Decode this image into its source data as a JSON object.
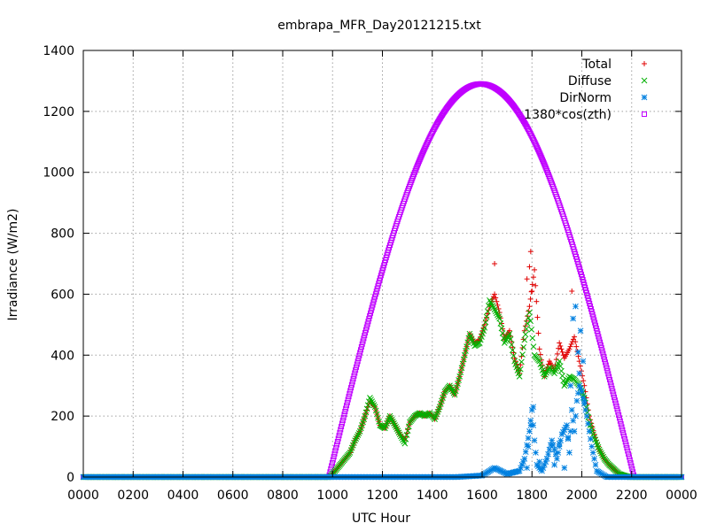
{
  "chart_data": {
    "type": "scatter",
    "title": "embrapa_MFR_Day20121215.txt",
    "xlabel": "UTC Hour",
    "ylabel": "Irradiance (W/m2)",
    "xlim": [
      0,
      24
    ],
    "ylim": [
      0,
      1400
    ],
    "x_ticks": [
      {
        "value": 0,
        "label": "0000"
      },
      {
        "value": 2,
        "label": "0200"
      },
      {
        "value": 4,
        "label": "0400"
      },
      {
        "value": 6,
        "label": "0600"
      },
      {
        "value": 8,
        "label": "0800"
      },
      {
        "value": 10,
        "label": "1000"
      },
      {
        "value": 12,
        "label": "1200"
      },
      {
        "value": 14,
        "label": "1400"
      },
      {
        "value": 16,
        "label": "1600"
      },
      {
        "value": 18,
        "label": "1800"
      },
      {
        "value": 20,
        "label": "2000"
      },
      {
        "value": 22,
        "label": "2200"
      },
      {
        "value": 24,
        "label": "0000"
      }
    ],
    "y_ticks": [
      0,
      200,
      400,
      600,
      800,
      1000,
      1200,
      1400
    ],
    "grid": true,
    "legend_position": "top-right",
    "series": [
      {
        "name": "Total",
        "color": "#e00000",
        "marker": "plus",
        "x": [
          0,
          2,
          4,
          6,
          8,
          9.9,
          10.1,
          10.3,
          10.5,
          10.7,
          10.9,
          11.1,
          11.3,
          11.5,
          11.7,
          11.9,
          12.1,
          12.3,
          12.5,
          12.7,
          12.9,
          13.1,
          13.3,
          13.5,
          13.7,
          13.9,
          14.1,
          14.3,
          14.5,
          14.7,
          14.9,
          15.1,
          15.3,
          15.5,
          15.7,
          15.9,
          16.1,
          16.3,
          16.5,
          16.7,
          16.9,
          17.1,
          17.3,
          17.5,
          17.7,
          17.9,
          18.1,
          18.3,
          18.5,
          18.7,
          18.9,
          19.1,
          19.3,
          19.5,
          19.7,
          19.9,
          20.1,
          20.3,
          20.5,
          20.7,
          20.9,
          21.1,
          21.3,
          21.5,
          21.7,
          21.9,
          22.1,
          22.5,
          23,
          24,
          16.5,
          17.9,
          17.95,
          18.0,
          19.6,
          17.8
        ],
        "y": [
          0,
          0,
          0,
          0,
          0,
          0,
          20,
          40,
          60,
          80,
          120,
          150,
          200,
          250,
          230,
          170,
          160,
          200,
          170,
          140,
          120,
          180,
          200,
          210,
          200,
          210,
          190,
          230,
          280,
          300,
          270,
          330,
          400,
          470,
          440,
          450,
          500,
          560,
          600,
          540,
          450,
          480,
          390,
          340,
          480,
          560,
          680,
          420,
          330,
          380,
          350,
          440,
          390,
          420,
          460,
          380,
          300,
          200,
          140,
          90,
          60,
          40,
          25,
          10,
          5,
          0,
          0,
          0,
          0,
          0,
          700,
          690,
          740,
          610,
          610,
          650
        ]
      },
      {
        "name": "Diffuse",
        "color": "#00b000",
        "marker": "cross",
        "x": [
          0,
          2,
          4,
          6,
          8,
          9.9,
          10.1,
          10.3,
          10.5,
          10.7,
          10.9,
          11.1,
          11.3,
          11.5,
          11.7,
          11.9,
          12.1,
          12.3,
          12.5,
          12.7,
          12.9,
          13.1,
          13.3,
          13.5,
          13.7,
          13.9,
          14.1,
          14.3,
          14.5,
          14.7,
          14.9,
          15.1,
          15.3,
          15.5,
          15.7,
          15.9,
          16.1,
          16.3,
          16.5,
          16.7,
          16.9,
          17.1,
          17.3,
          17.5,
          17.7,
          17.9,
          18.1,
          18.3,
          18.5,
          18.7,
          18.9,
          19.1,
          19.3,
          19.5,
          19.7,
          19.9,
          20.1,
          20.3,
          20.5,
          20.7,
          20.9,
          21.1,
          21.3,
          21.5,
          21.7,
          21.9,
          22.1,
          22.5,
          23,
          24
        ],
        "y": [
          0,
          0,
          0,
          0,
          0,
          0,
          20,
          40,
          60,
          80,
          120,
          150,
          200,
          260,
          230,
          170,
          160,
          200,
          170,
          140,
          110,
          180,
          200,
          210,
          200,
          210,
          190,
          230,
          280,
          300,
          270,
          330,
          400,
          470,
          430,
          440,
          490,
          580,
          550,
          520,
          440,
          470,
          380,
          330,
          450,
          540,
          400,
          380,
          330,
          360,
          340,
          380,
          300,
          330,
          320,
          300,
          260,
          180,
          130,
          90,
          60,
          40,
          25,
          10,
          5,
          0,
          0,
          0,
          0,
          0
        ]
      },
      {
        "name": "DirNorm",
        "color": "#0080e0",
        "marker": "star",
        "x": [
          0,
          2,
          4,
          6,
          8,
          10,
          11,
          12,
          13,
          14,
          15,
          16,
          16.5,
          17,
          17.5,
          17.7,
          17.9,
          18.0,
          18.1,
          18.2,
          18.4,
          18.6,
          18.8,
          19.0,
          19.2,
          19.4,
          19.5,
          19.6,
          19.7,
          19.8,
          19.9,
          20.0,
          20.2,
          20.4,
          20.6,
          21,
          22,
          23,
          24,
          17.8,
          17.85,
          17.95,
          18.05,
          19.65,
          19.75,
          19.85,
          19.95,
          20.05,
          18.3,
          18.9,
          19.1,
          19.3,
          19.45,
          19.55,
          19.9,
          20.1
        ],
        "y": [
          0,
          0,
          0,
          0,
          0,
          0,
          0,
          0,
          0,
          0,
          0,
          5,
          30,
          10,
          20,
          60,
          150,
          220,
          120,
          40,
          20,
          60,
          120,
          60,
          140,
          170,
          80,
          220,
          150,
          250,
          300,
          280,
          200,
          100,
          20,
          0,
          0,
          0,
          0,
          30,
          100,
          170,
          230,
          520,
          560,
          410,
          480,
          380,
          50,
          40,
          110,
          30,
          130,
          300,
          340,
          250
        ]
      },
      {
        "name": "1380*cos(zth)",
        "color": "#c000ff",
        "marker": "square",
        "sunrise": 9.85,
        "sunset": 22.1,
        "peak_time": 15.95,
        "peak_value": 1290,
        "x": [
          0,
          2,
          4,
          6,
          8,
          9.85,
          10.5,
          11,
          11.5,
          12,
          12.5,
          13,
          13.5,
          14,
          14.5,
          15,
          15.5,
          15.95,
          16.5,
          17,
          17.5,
          18,
          18.5,
          19,
          19.5,
          20,
          20.5,
          21,
          21.5,
          22.1,
          23,
          24
        ],
        "y": [
          0,
          0,
          0,
          0,
          0,
          0,
          210,
          370,
          530,
          680,
          820,
          950,
          1060,
          1150,
          1220,
          1265,
          1287,
          1290,
          1280,
          1245,
          1180,
          1090,
          970,
          830,
          680,
          520,
          350,
          180,
          50,
          0,
          0,
          0
        ]
      }
    ]
  }
}
